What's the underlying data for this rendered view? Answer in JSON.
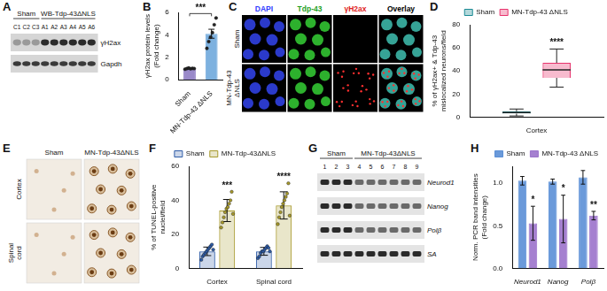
{
  "figure_panels": [
    {
      "letter": "A",
      "kind": "western_blot",
      "groups": [
        {
          "label": "Sham",
          "lanes": [
            "C1",
            "C2",
            "C3"
          ]
        },
        {
          "label": "WB-Tdp-43ΔNLS",
          "lanes": [
            "A1",
            "A2",
            "A3",
            "A4",
            "A5",
            "A6"
          ]
        }
      ],
      "rows": [
        "γH2ax",
        "Gapdh"
      ]
    },
    {
      "letter": "C",
      "kind": "micrographs",
      "columns": [
        "DAPI",
        "Tdp-43",
        "γH2ax",
        "Overlay"
      ],
      "colors": [
        "#2f3cff",
        "#1ea01e",
        "#e02020",
        "#000000"
      ],
      "rows": [
        "Sham",
        "MN-Tdp-43 ΔNLS"
      ]
    },
    {
      "letter": "E",
      "kind": "ihc",
      "columns": [
        "Sham",
        "MN-Tdp-43ΔNLS"
      ],
      "rows": [
        "Cortex",
        "Spinal cord"
      ]
    },
    {
      "letter": "G",
      "kind": "pcr_gel",
      "groups": [
        {
          "label": "Sham",
          "lanes": [
            "1",
            "2",
            "3"
          ]
        },
        {
          "label": "MN-Tdp-43ΔNLS",
          "lanes": [
            "4",
            "5",
            "6",
            "7",
            "8",
            "9"
          ]
        }
      ],
      "rows": [
        "Neurod1",
        "Nanog",
        "Polβ",
        "SA"
      ]
    }
  ],
  "chart_data": [
    {
      "panel": "B",
      "type": "bar",
      "categories": [
        "Sham",
        "MN-Tdp-43 ΔNLS"
      ],
      "values": [
        1.0,
        4.1
      ],
      "errors": [
        0.03,
        0.4
      ],
      "points": [
        [
          0.95,
          1.0,
          1.05,
          0.98,
          1.02,
          1.0
        ],
        [
          2.8,
          3.4,
          3.8,
          4.2,
          4.9,
          5.5
        ]
      ],
      "colors": [
        "#8e7cc3",
        "#6fa8dc"
      ],
      "ylabel": [
        "γH2ax protein levels",
        "(Fold change)"
      ],
      "ylim": [
        0,
        6
      ],
      "yticks": [
        0,
        2,
        4,
        6
      ],
      "grid": false,
      "significance": [
        "***"
      ]
    },
    {
      "panel": "D",
      "type": "box",
      "categories": [
        "Cortex"
      ],
      "series": [
        {
          "name": "Sham",
          "color": "#1b8a94",
          "min": [
            1
          ],
          "q1": [
            3
          ],
          "median": [
            4
          ],
          "q3": [
            5
          ],
          "max": [
            7
          ]
        },
        {
          "name": "MN-Tdp-43 ΔNLS",
          "color": "#e8336d",
          "min": [
            26
          ],
          "q1": [
            34
          ],
          "median": [
            41
          ],
          "q3": [
            47
          ],
          "max": [
            59
          ]
        }
      ],
      "ylabel": [
        "% of γH2ax+ & Tdp-43",
        "mislocalized neurons/field"
      ],
      "ylim": [
        0,
        80
      ],
      "yticks": [
        0,
        20,
        40,
        60,
        80
      ],
      "grid": false,
      "legend": "top",
      "significance": [
        "****"
      ]
    },
    {
      "panel": "F",
      "type": "bar",
      "categories": [
        "Cortex",
        "Spinal cord"
      ],
      "series": [
        {
          "name": "Sham",
          "color": "#2f5da8",
          "values": [
            10,
            10
          ],
          "errors": [
            2.5,
            2.3
          ],
          "points": [
            [
              5,
              7,
              8,
              9,
              10,
              11,
              12,
              13,
              14,
              11
            ],
            [
              6,
              7,
              9,
              10,
              10,
              11,
              12,
              13,
              12,
              10
            ]
          ]
        },
        {
          "name": "MN-Tdp-43ΔNLS",
          "color": "#a89a2c",
          "values": [
            34,
            37
          ],
          "errors": [
            6.5,
            8
          ],
          "points": [
            [
              24,
              27,
              30,
              33,
              35,
              36,
              38,
              40,
              45,
              32
            ],
            [
              26,
              30,
              33,
              36,
              38,
              40,
              42,
              44,
              50,
              31
            ]
          ]
        }
      ],
      "ylabel": [
        "% of TUNEL-positive",
        "nuclei/field"
      ],
      "ylim": [
        0,
        60
      ],
      "yticks": [
        0,
        20,
        40,
        60
      ],
      "grid": false,
      "legend": "top",
      "significance": [
        "***",
        "****"
      ]
    },
    {
      "panel": "H",
      "type": "bar",
      "categories": [
        "Neurod1",
        "Nanog",
        "Polβ"
      ],
      "series": [
        {
          "name": "Sham",
          "color": "#5b8fd6",
          "values": [
            1.03,
            1.02,
            1.07
          ],
          "errors": [
            0.05,
            0.03,
            0.08
          ]
        },
        {
          "name": "MN-Tdp-43 ΔNLS",
          "color": "#9b72cb",
          "values": [
            0.53,
            0.58,
            0.62
          ],
          "errors": [
            0.2,
            0.28,
            0.05
          ]
        }
      ],
      "ylabel": [
        "Norm. PCR band intensities",
        "(Fold change)"
      ],
      "ylim": [
        0,
        1.2
      ],
      "yticks": [
        {
          "value": 0,
          "label": "0.0"
        },
        {
          "value": 0.5,
          "label": "0.5"
        },
        {
          "value": 1,
          "label": "1.0"
        }
      ],
      "grid": false,
      "legend": "top-right",
      "significance": [
        "*",
        "*",
        "**"
      ]
    }
  ]
}
